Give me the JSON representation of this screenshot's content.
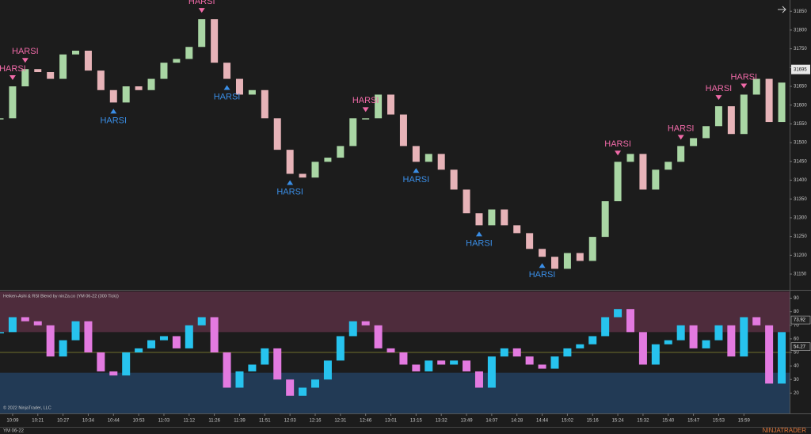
{
  "chart_data": [
    {
      "type": "candlestick",
      "values": [
        31565,
        31650,
        31696,
        31688,
        31670,
        31735,
        31745,
        31692,
        31640,
        31607,
        31650,
        31640,
        31670,
        31713,
        31723,
        31755,
        31829,
        31713,
        31670,
        31628,
        31640,
        31565,
        31481,
        31417,
        31407,
        31449,
        31460,
        31491,
        31565,
        31565,
        31628,
        31575,
        31491,
        31449,
        31470,
        31428,
        31375,
        31312,
        31280,
        31322,
        31280,
        31259,
        31217,
        31196,
        31164,
        31206,
        31185,
        31249,
        31344,
        31449,
        31470,
        31375,
        31428,
        31449,
        31491,
        31512,
        31544,
        31597,
        31523,
        31628,
        31670,
        31555,
        31660
      ],
      "xlim": [
        0,
        62.5
      ],
      "ylim": [
        31110,
        31880
      ],
      "yticks": [
        31150,
        31200,
        31250,
        31300,
        31350,
        31400,
        31450,
        31500,
        31550,
        31600,
        31650,
        31700,
        31750,
        31800,
        31850
      ],
      "last_value": 31695,
      "up_color": "#a9d6a4",
      "down_color": "#e7b3b8",
      "signals": [
        {
          "x": 1,
          "direction": "sell",
          "label": "HARSI"
        },
        {
          "x": 2,
          "direction": "sell",
          "label": "HARSI"
        },
        {
          "x": 9,
          "direction": "buy",
          "label": "HARSI"
        },
        {
          "x": 16,
          "direction": "sell",
          "label": "HARSI"
        },
        {
          "x": 18,
          "direction": "buy",
          "label": "HARSI"
        },
        {
          "x": 23,
          "direction": "buy",
          "label": "HARSI"
        },
        {
          "x": 29,
          "direction": "sell",
          "label": "HARSI"
        },
        {
          "x": 33,
          "direction": "buy",
          "label": "HARSI"
        },
        {
          "x": 38,
          "direction": "buy",
          "label": "HARSI"
        },
        {
          "x": 43,
          "direction": "buy",
          "label": "HARSI"
        },
        {
          "x": 49,
          "direction": "sell",
          "label": "HARSI"
        },
        {
          "x": 54,
          "direction": "sell",
          "label": "HARSI"
        },
        {
          "x": 57,
          "direction": "sell",
          "label": "HARSI"
        },
        {
          "x": 59,
          "direction": "sell",
          "label": "HARSI"
        }
      ],
      "sell_color": "#f06aa8",
      "buy_color": "#3a8ee6"
    },
    {
      "type": "oscillator",
      "title": "Heiken-Ashi & RSI Blend by ninZa.co (YM 06-22 (300 Tick))",
      "values": [
        65,
        76,
        73,
        70,
        47,
        59,
        73,
        50,
        36,
        33,
        50,
        53,
        59,
        62,
        53,
        70,
        76,
        50,
        24,
        36,
        41,
        53,
        30,
        18,
        24,
        30,
        44,
        62,
        73,
        70,
        53,
        50,
        41,
        36,
        44,
        41,
        44,
        36,
        24,
        47,
        53,
        47,
        41,
        38,
        47,
        53,
        56,
        62,
        76,
        82,
        65,
        41,
        56,
        59,
        70,
        53,
        59,
        70,
        47,
        76,
        70,
        27,
        65
      ],
      "xlim": [
        0,
        62.5
      ],
      "ylim": [
        5,
        95
      ],
      "yticks": [
        20,
        30,
        40,
        50,
        60,
        70,
        80,
        90
      ],
      "overbought": 65,
      "oversold": 35,
      "midline": 50,
      "tags": [
        73.92,
        54.27
      ],
      "up_color": "#27c3ee",
      "down_color": "#e37ae0",
      "xticks": [
        {
          "value": 1,
          "label": "10:09"
        },
        {
          "value": 3,
          "label": "10:21"
        },
        {
          "value": 5,
          "label": "10:27"
        },
        {
          "value": 7,
          "label": "10:34"
        },
        {
          "value": 9,
          "label": "10:44"
        },
        {
          "value": 11,
          "label": "10:53"
        },
        {
          "value": 13,
          "label": "11:03"
        },
        {
          "value": 15,
          "label": "11:12"
        },
        {
          "value": 17,
          "label": "11:26"
        },
        {
          "value": 19,
          "label": "11:39"
        },
        {
          "value": 21,
          "label": "11:51"
        },
        {
          "value": 23,
          "label": "12:03"
        },
        {
          "value": 25,
          "label": "12:16"
        },
        {
          "value": 27,
          "label": "12:31"
        },
        {
          "value": 29,
          "label": "12:46"
        },
        {
          "value": 31,
          "label": "13:01"
        },
        {
          "value": 33,
          "label": "13:15"
        },
        {
          "value": 35,
          "label": "13:32"
        },
        {
          "value": 37,
          "label": "13:49"
        },
        {
          "value": 39,
          "label": "14:07"
        },
        {
          "value": 41,
          "label": "14:28"
        },
        {
          "value": 43,
          "label": "14:44"
        },
        {
          "value": 45,
          "label": "15:02"
        },
        {
          "value": 47,
          "label": "15:16"
        },
        {
          "value": 49,
          "label": "15:24"
        },
        {
          "value": 51,
          "label": "15:32"
        },
        {
          "value": 53,
          "label": "15:40"
        },
        {
          "value": 55,
          "label": "15:47"
        },
        {
          "value": 57,
          "label": "15:53"
        },
        {
          "value": 59,
          "label": "15:59"
        }
      ],
      "copyright": "© 2022 NinjaTrader, LLC"
    }
  ],
  "footer": {
    "instrument": "YM 06-22",
    "brand": "NINJATRADER"
  }
}
